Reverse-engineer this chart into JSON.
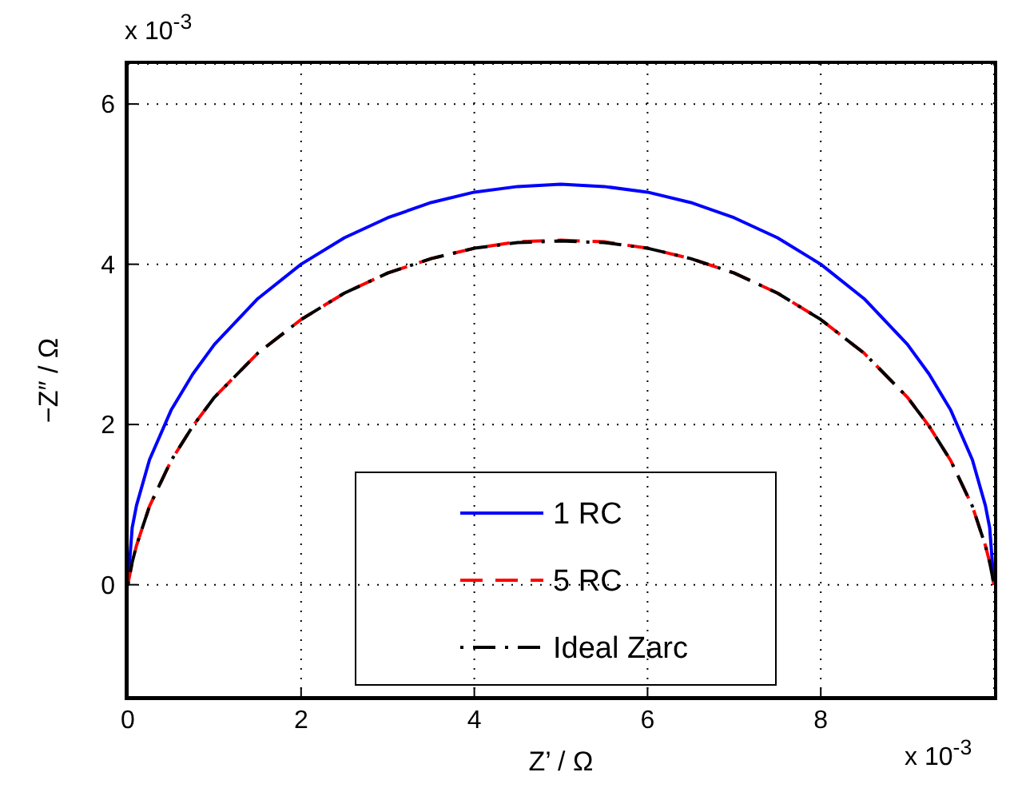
{
  "chart_data": {
    "type": "line",
    "xlabel": "Z’ / Ω",
    "ylabel": "−Z″ / Ω",
    "annotations": [
      "x 10$^{-3}$",
      "x 10$^{-3}$"
    ],
    "x": [
      0,
      0.05,
      0.1,
      0.25,
      0.5,
      0.75,
      1,
      1.5,
      2,
      2.5,
      3,
      3.5,
      4,
      4.5,
      5,
      5.5,
      6,
      6.5,
      7,
      7.5,
      8,
      8.5,
      9,
      9.25,
      9.5,
      9.75,
      9.9,
      9.95,
      10
    ],
    "series": [
      {
        "name": "1 RC",
        "color": "#0000ff",
        "line_style": "solid",
        "values": [
          0,
          0.71,
          0.99,
          1.56,
          2.18,
          2.63,
          3,
          3.57,
          4,
          4.33,
          4.58,
          4.77,
          4.9,
          4.97,
          5,
          4.97,
          4.9,
          4.77,
          4.58,
          4.33,
          4,
          3.57,
          3,
          2.63,
          2.18,
          1.56,
          0.99,
          0.71,
          0
        ]
      },
      {
        "name": "5 RC",
        "color": "#ff0000",
        "line_style": "dashed",
        "values": [
          0,
          0.28,
          0.49,
          0.98,
          1.55,
          1.98,
          2.34,
          2.89,
          3.31,
          3.64,
          3.89,
          4.07,
          4.2,
          4.28,
          4.3,
          4.28,
          4.2,
          4.07,
          3.89,
          3.64,
          3.31,
          2.89,
          2.34,
          1.98,
          1.55,
          0.98,
          0.49,
          0.28,
          0
        ]
      },
      {
        "name": "Ideal Zarc",
        "color": "#000000",
        "line_style": "dashdot",
        "values": [
          0,
          0.28,
          0.49,
          0.98,
          1.55,
          1.98,
          2.34,
          2.89,
          3.31,
          3.64,
          3.89,
          4.07,
          4.2,
          4.27,
          4.29,
          4.27,
          4.2,
          4.07,
          3.89,
          3.64,
          3.31,
          2.89,
          2.34,
          1.98,
          1.55,
          0.98,
          0.49,
          0.28,
          0
        ]
      }
    ],
    "xlim": [
      0,
      10
    ],
    "xticks": [
      0,
      2,
      4,
      6,
      8
    ],
    "ylim": [
      -1.4,
      6.5
    ],
    "yticks": [
      0,
      2,
      4,
      6
    ],
    "grid": true,
    "legend": "bottom",
    "marker": "none"
  }
}
